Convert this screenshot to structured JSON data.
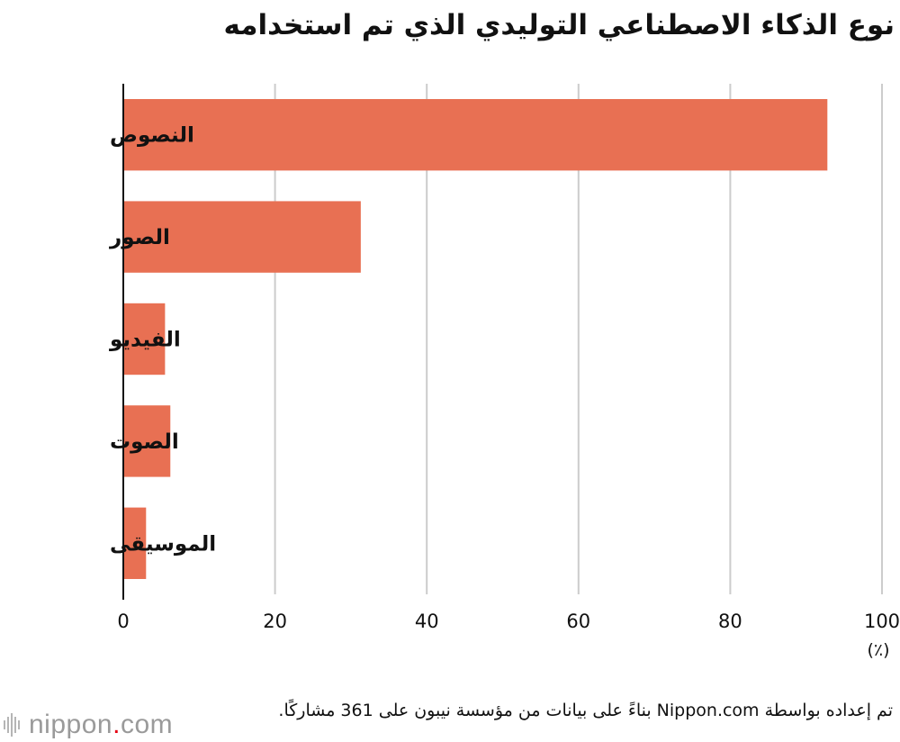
{
  "header": {
    "title": "نوع الذكاء الاصطناعي التوليدي الذي تم استخدامه"
  },
  "chart_data": {
    "type": "bar",
    "orientation": "horizontal",
    "categories": [
      "النصوص",
      "الصور",
      "الفيديو",
      "الصوت",
      "الموسيقى"
    ],
    "values": [
      92.8,
      31.3,
      5.5,
      6.2,
      3.0
    ],
    "xlim": [
      0,
      100
    ],
    "x_ticks": [
      0,
      20,
      40,
      60,
      80,
      100
    ],
    "unit_label": "(٪)",
    "grid": true,
    "bar_color": "#e87053"
  },
  "footer": {
    "source": "تم إعداده بواسطة Nippon.com بناءً على بيانات من مؤسسة نيبون على 361 مشاركًا."
  },
  "logo": {
    "main": "nippon",
    "dot": ".",
    "suffix": "com"
  },
  "colors": {
    "grid": "#cccccc",
    "axis": "#111111",
    "logo_text": "#9a9a9a",
    "logo_dot": "#e60012"
  }
}
